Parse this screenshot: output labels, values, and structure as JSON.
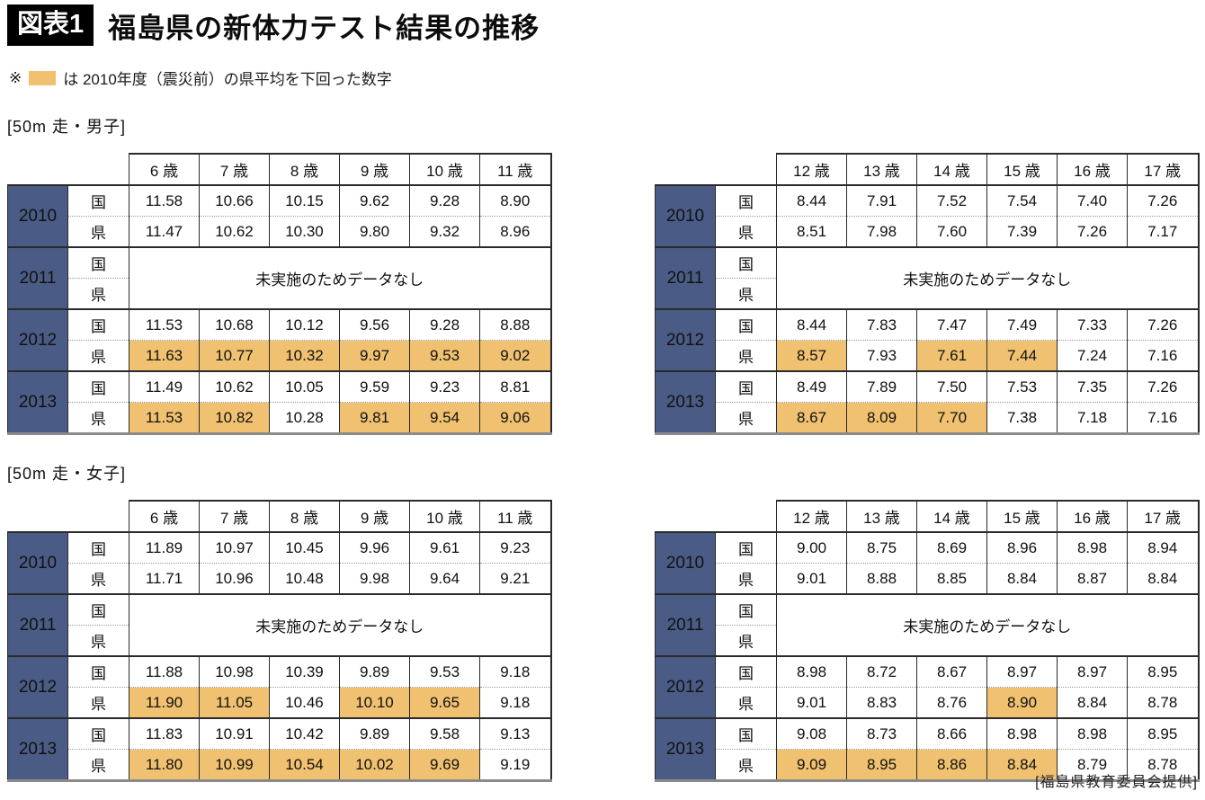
{
  "header": {
    "badge": "図表1",
    "title": "福島県の新体力テスト結果の推移",
    "note_prefix": "※",
    "note_text": "は 2010年度（震災前）の県平均を下回った数字"
  },
  "colors": {
    "year_header_bg": "#4a5c86",
    "highlight": "#f0c170"
  },
  "row_labels": {
    "national": "国",
    "prefecture": "県"
  },
  "sections": [
    {
      "label": "[50m 走・男子]"
    },
    {
      "label": "[50m 走・女子]"
    }
  ],
  "footer": "[福島県教育委員会提供]",
  "chart_data": [
    {
      "type": "table",
      "section": "50m走・男子",
      "columns": [
        "6 歳",
        "7 歳",
        "8 歳",
        "9 歳",
        "10 歳",
        "11 歳"
      ],
      "groups": [
        {
          "year": "2010",
          "rows": [
            {
              "label": "国",
              "values": [
                "11.58",
                "10.66",
                "10.15",
                "9.62",
                "9.28",
                "8.90"
              ]
            },
            {
              "label": "県",
              "values": [
                "11.47",
                "10.62",
                "10.30",
                "9.80",
                "9.32",
                "8.96"
              ]
            }
          ]
        },
        {
          "year": "2011",
          "no_data": "未実施のためデータなし"
        },
        {
          "year": "2012",
          "rows": [
            {
              "label": "国",
              "values": [
                "11.53",
                "10.68",
                "10.12",
                "9.56",
                "9.28",
                "8.88"
              ]
            },
            {
              "label": "県",
              "values": [
                "11.63",
                "10.77",
                "10.32",
                "9.97",
                "9.53",
                "9.02"
              ],
              "highlight": [
                1,
                1,
                1,
                1,
                1,
                1
              ]
            }
          ]
        },
        {
          "year": "2013",
          "rows": [
            {
              "label": "国",
              "values": [
                "11.49",
                "10.62",
                "10.05",
                "9.59",
                "9.23",
                "8.81"
              ]
            },
            {
              "label": "県",
              "values": [
                "11.53",
                "10.82",
                "10.28",
                "9.81",
                "9.54",
                "9.06"
              ],
              "highlight": [
                1,
                1,
                0,
                1,
                1,
                1
              ]
            }
          ]
        }
      ]
    },
    {
      "type": "table",
      "section": "50m走・男子",
      "columns": [
        "12 歳",
        "13 歳",
        "14 歳",
        "15 歳",
        "16 歳",
        "17 歳"
      ],
      "groups": [
        {
          "year": "2010",
          "rows": [
            {
              "label": "国",
              "values": [
                "8.44",
                "7.91",
                "7.52",
                "7.54",
                "7.40",
                "7.26"
              ]
            },
            {
              "label": "県",
              "values": [
                "8.51",
                "7.98",
                "7.60",
                "7.39",
                "7.26",
                "7.17"
              ]
            }
          ]
        },
        {
          "year": "2011",
          "no_data": "未実施のためデータなし"
        },
        {
          "year": "2012",
          "rows": [
            {
              "label": "国",
              "values": [
                "8.44",
                "7.83",
                "7.47",
                "7.49",
                "7.33",
                "7.26"
              ]
            },
            {
              "label": "県",
              "values": [
                "8.57",
                "7.93",
                "7.61",
                "7.44",
                "7.24",
                "7.16"
              ],
              "highlight": [
                1,
                0,
                1,
                1,
                0,
                0
              ]
            }
          ]
        },
        {
          "year": "2013",
          "rows": [
            {
              "label": "国",
              "values": [
                "8.49",
                "7.89",
                "7.50",
                "7.53",
                "7.35",
                "7.26"
              ]
            },
            {
              "label": "県",
              "values": [
                "8.67",
                "8.09",
                "7.70",
                "7.38",
                "7.18",
                "7.16"
              ],
              "highlight": [
                1,
                1,
                1,
                0,
                0,
                0
              ]
            }
          ]
        }
      ]
    },
    {
      "type": "table",
      "section": "50m走・女子",
      "columns": [
        "6 歳",
        "7 歳",
        "8 歳",
        "9 歳",
        "10 歳",
        "11 歳"
      ],
      "groups": [
        {
          "year": "2010",
          "rows": [
            {
              "label": "国",
              "values": [
                "11.89",
                "10.97",
                "10.45",
                "9.96",
                "9.61",
                "9.23"
              ]
            },
            {
              "label": "県",
              "values": [
                "11.71",
                "10.96",
                "10.48",
                "9.98",
                "9.64",
                "9.21"
              ]
            }
          ]
        },
        {
          "year": "2011",
          "no_data": "未実施のためデータなし"
        },
        {
          "year": "2012",
          "rows": [
            {
              "label": "国",
              "values": [
                "11.88",
                "10.98",
                "10.39",
                "9.89",
                "9.53",
                "9.18"
              ]
            },
            {
              "label": "県",
              "values": [
                "11.90",
                "11.05",
                "10.46",
                "10.10",
                "9.65",
                "9.18"
              ],
              "highlight": [
                1,
                1,
                0,
                1,
                1,
                0
              ]
            }
          ]
        },
        {
          "year": "2013",
          "rows": [
            {
              "label": "国",
              "values": [
                "11.83",
                "10.91",
                "10.42",
                "9.89",
                "9.58",
                "9.13"
              ]
            },
            {
              "label": "県",
              "values": [
                "11.80",
                "10.99",
                "10.54",
                "10.02",
                "9.69",
                "9.19"
              ],
              "highlight": [
                1,
                1,
                1,
                1,
                1,
                0
              ]
            }
          ]
        }
      ]
    },
    {
      "type": "table",
      "section": "50m走・女子",
      "columns": [
        "12 歳",
        "13 歳",
        "14 歳",
        "15 歳",
        "16 歳",
        "17 歳"
      ],
      "groups": [
        {
          "year": "2010",
          "rows": [
            {
              "label": "国",
              "values": [
                "9.00",
                "8.75",
                "8.69",
                "8.96",
                "8.98",
                "8.94"
              ]
            },
            {
              "label": "県",
              "values": [
                "9.01",
                "8.88",
                "8.85",
                "8.84",
                "8.87",
                "8.84"
              ]
            }
          ]
        },
        {
          "year": "2011",
          "no_data": "未実施のためデータなし"
        },
        {
          "year": "2012",
          "rows": [
            {
              "label": "国",
              "values": [
                "8.98",
                "8.72",
                "8.67",
                "8.97",
                "8.97",
                "8.95"
              ]
            },
            {
              "label": "県",
              "values": [
                "9.01",
                "8.83",
                "8.76",
                "8.90",
                "8.84",
                "8.78"
              ],
              "highlight": [
                0,
                0,
                0,
                1,
                0,
                0
              ]
            }
          ]
        },
        {
          "year": "2013",
          "rows": [
            {
              "label": "国",
              "values": [
                "9.08",
                "8.73",
                "8.66",
                "8.98",
                "8.98",
                "8.95"
              ]
            },
            {
              "label": "県",
              "values": [
                "9.09",
                "8.95",
                "8.86",
                "8.84",
                "8.79",
                "8.78"
              ],
              "highlight": [
                1,
                1,
                1,
                1,
                0,
                0
              ]
            }
          ]
        }
      ]
    }
  ]
}
